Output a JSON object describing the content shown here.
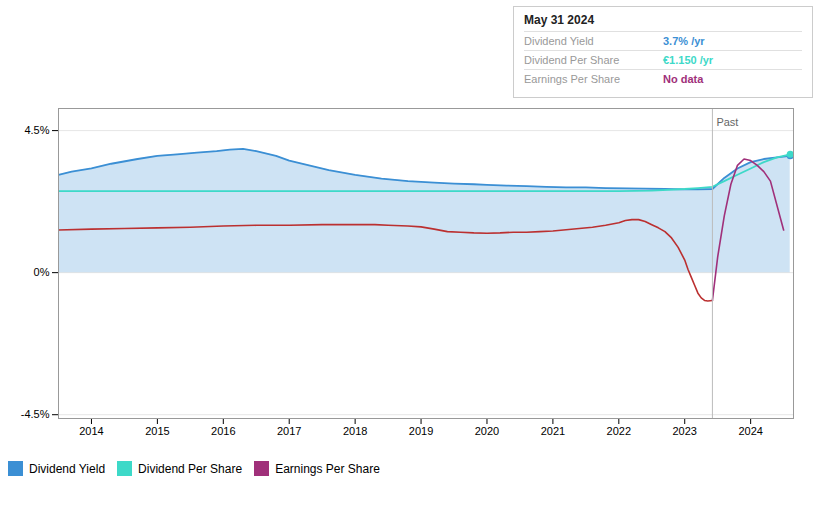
{
  "chart_data": {
    "type": "line",
    "xlim": [
      2013.5,
      2024.65
    ],
    "xticks": [
      2014,
      2015,
      2016,
      2017,
      2018,
      2019,
      2020,
      2021,
      2022,
      2023,
      2024
    ],
    "ylim": [
      -4.62,
      5.2
    ],
    "yticks": [
      {
        "value": -4.5,
        "label": "-4.5%"
      },
      {
        "value": 0,
        "label": "0%"
      },
      {
        "value": 4.5,
        "label": "4.5%"
      }
    ],
    "grid": true,
    "legend": "bottom",
    "annotations": [
      {
        "text": "Past",
        "x": 2023.42
      },
      {
        "text": "May 31 2024",
        "rows": [
          {
            "name": "Dividend Yield",
            "value": "3.7% /yr"
          },
          {
            "name": "Dividend Per Share",
            "value": "€1.150 /yr"
          },
          {
            "name": "Earnings Per Share",
            "value": "No data"
          }
        ]
      }
    ],
    "series": [
      {
        "name": "Dividend Yield",
        "type": "area",
        "color": "#3b8fd4",
        "x": [
          2013.5,
          2013.7,
          2014.0,
          2014.3,
          2014.7,
          2015.0,
          2015.3,
          2015.6,
          2015.9,
          2016.1,
          2016.3,
          2016.5,
          2016.8,
          2017.0,
          2017.3,
          2017.6,
          2018.0,
          2018.4,
          2018.8,
          2019.2,
          2019.5,
          2019.8,
          2020.0,
          2020.3,
          2020.6,
          2020.9,
          2021.2,
          2021.5,
          2021.8,
          2022.1,
          2022.4,
          2022.7,
          2023.0,
          2023.2,
          2023.42,
          2023.6,
          2023.8,
          2024.0,
          2024.2,
          2024.4,
          2024.6
        ],
        "values": [
          3.1,
          3.2,
          3.3,
          3.45,
          3.6,
          3.7,
          3.75,
          3.8,
          3.85,
          3.9,
          3.92,
          3.85,
          3.7,
          3.55,
          3.4,
          3.25,
          3.1,
          2.98,
          2.9,
          2.85,
          2.82,
          2.8,
          2.78,
          2.76,
          2.74,
          2.72,
          2.7,
          2.7,
          2.68,
          2.67,
          2.66,
          2.65,
          2.64,
          2.64,
          2.65,
          3.0,
          3.3,
          3.5,
          3.6,
          3.65,
          3.7
        ]
      },
      {
        "name": "Dividend Per Share",
        "type": "line",
        "color": "#3dd9c8",
        "x": [
          2013.5,
          2014.0,
          2015.0,
          2016.0,
          2017.0,
          2018.0,
          2019.0,
          2019.5,
          2020.0,
          2020.5,
          2021.0,
          2021.5,
          2022.0,
          2022.5,
          2023.0,
          2023.2,
          2023.42,
          2023.6,
          2023.8,
          2024.0,
          2024.2,
          2024.4,
          2024.6
        ],
        "values": [
          2.58,
          2.58,
          2.58,
          2.58,
          2.58,
          2.58,
          2.58,
          2.58,
          2.58,
          2.58,
          2.58,
          2.58,
          2.58,
          2.6,
          2.65,
          2.68,
          2.72,
          2.9,
          3.1,
          3.3,
          3.5,
          3.65,
          3.75
        ]
      },
      {
        "name": "Earnings Per Share",
        "type": "line",
        "color": "#a0307a",
        "colors": [
          "#bb3030",
          "#a0307a"
        ],
        "x": [
          2013.5,
          2014.0,
          2014.5,
          2015.0,
          2015.5,
          2016.0,
          2016.5,
          2017.0,
          2017.5,
          2018.0,
          2018.3,
          2018.5,
          2018.8,
          2019.0,
          2019.2,
          2019.4,
          2019.6,
          2019.8,
          2020.0,
          2020.2,
          2020.4,
          2020.6,
          2020.8,
          2021.0,
          2021.2,
          2021.4,
          2021.6,
          2021.8,
          2022.0,
          2022.1,
          2022.2,
          2022.3,
          2022.4,
          2022.5,
          2022.6,
          2022.7,
          2022.8,
          2022.9,
          2023.0,
          2023.05,
          2023.1,
          2023.15,
          2023.2,
          2023.25,
          2023.3,
          2023.35,
          2023.42,
          2023.5,
          2023.6,
          2023.7,
          2023.8,
          2023.9,
          2024.0,
          2024.1,
          2024.2,
          2024.3,
          2024.5
        ],
        "values": [
          1.35,
          1.38,
          1.4,
          1.42,
          1.44,
          1.48,
          1.5,
          1.5,
          1.52,
          1.52,
          1.52,
          1.5,
          1.48,
          1.45,
          1.38,
          1.3,
          1.28,
          1.26,
          1.25,
          1.26,
          1.28,
          1.28,
          1.3,
          1.32,
          1.36,
          1.4,
          1.44,
          1.5,
          1.58,
          1.65,
          1.68,
          1.68,
          1.62,
          1.52,
          1.42,
          1.3,
          1.1,
          0.8,
          0.4,
          0.1,
          -0.15,
          -0.4,
          -0.65,
          -0.8,
          -0.88,
          -0.9,
          -0.88,
          0.5,
          1.8,
          2.8,
          3.4,
          3.6,
          3.55,
          3.4,
          3.2,
          2.9,
          1.35
        ]
      }
    ]
  }
}
